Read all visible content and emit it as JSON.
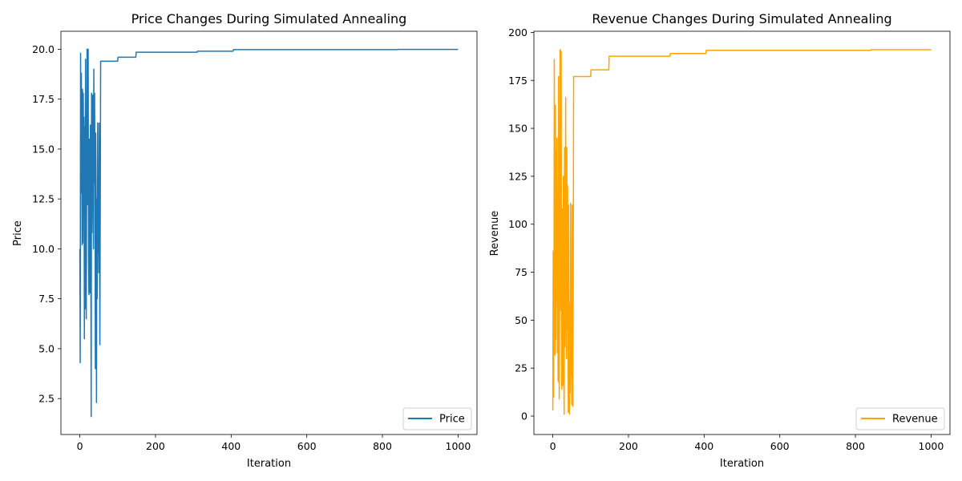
{
  "chart_data": [
    {
      "type": "line",
      "title": "Price Changes During Simulated Annealing",
      "xlabel": "Iteration",
      "ylabel": "Price",
      "xlim": [
        -50,
        1050
      ],
      "ylim": [
        0.7,
        20.9
      ],
      "xticks": [
        0,
        200,
        400,
        600,
        800,
        1000
      ],
      "yticks": [
        2.5,
        5.0,
        7.5,
        10.0,
        12.5,
        15.0,
        17.5,
        20.0
      ],
      "xtick_labels": [
        "0",
        "200",
        "400",
        "600",
        "800",
        "1000"
      ],
      "ytick_labels": [
        "2.5",
        "5.0",
        "7.5",
        "10.0",
        "12.5",
        "15.0",
        "17.5",
        "20.0"
      ],
      "grid": false,
      "legend_position": "bottom-right",
      "series": [
        {
          "name": "Price",
          "color": "#1f77b4",
          "x": [
            0,
            1,
            2,
            3,
            4,
            5,
            6,
            7,
            8,
            9,
            10,
            11,
            12,
            13,
            14,
            15,
            16,
            17,
            18,
            19,
            20,
            21,
            22,
            23,
            24,
            25,
            26,
            27,
            28,
            29,
            30,
            31,
            32,
            33,
            34,
            35,
            36,
            37,
            38,
            39,
            40,
            41,
            42,
            43,
            44,
            45,
            46,
            47,
            48,
            49,
            50,
            51,
            52,
            53,
            54,
            55,
            56,
            57,
            58,
            59,
            60,
            61,
            62,
            63,
            64,
            100,
            101,
            148,
            149,
            310,
            311,
            405,
            406,
            840,
            841,
            1000
          ],
          "y": [
            10.0,
            4.3,
            19.8,
            12.8,
            18.8,
            15.2,
            10.2,
            18.0,
            10.3,
            17.8,
            14.5,
            16.6,
            5.5,
            16.1,
            7.0,
            19.5,
            10.6,
            6.5,
            13.5,
            20.0,
            20.0,
            12.2,
            20.0,
            9.5,
            7.7,
            15.5,
            10.0,
            7.8,
            16.2,
            10.6,
            1.6,
            17.8,
            10.8,
            14.5,
            17.7,
            13.6,
            10.0,
            19.0,
            13.3,
            17.8,
            13.4,
            4.0,
            15.8,
            12.0,
            2.3,
            12.5,
            7.5,
            16.3,
            9.8,
            12.6,
            8.8,
            16.3,
            11.0,
            5.2,
            12.3,
            19.4,
            19.4,
            19.4,
            19.4,
            19.4,
            19.4,
            19.4,
            19.4,
            19.4,
            19.4,
            19.4,
            19.6,
            19.6,
            19.85,
            19.85,
            19.9,
            19.9,
            19.98,
            19.98,
            19.99,
            19.99
          ]
        }
      ]
    },
    {
      "type": "line",
      "title": "Revenue Changes During Simulated Annealing",
      "xlabel": "Iteration",
      "ylabel": "Revenue",
      "xlim": [
        -50,
        1050
      ],
      "ylim": [
        -9.6,
        200.6
      ],
      "xticks": [
        0,
        200,
        400,
        600,
        800,
        1000
      ],
      "yticks": [
        0,
        25,
        50,
        75,
        100,
        125,
        150,
        175,
        200
      ],
      "xtick_labels": [
        "0",
        "200",
        "400",
        "600",
        "800",
        "1000"
      ],
      "ytick_labels": [
        "0",
        "25",
        "50",
        "75",
        "100",
        "125",
        "150",
        "175",
        "200"
      ],
      "grid": false,
      "legend_position": "bottom-right",
      "series": [
        {
          "name": "Revenue",
          "color": "#ffa500",
          "x": [
            0,
            1,
            2,
            3,
            4,
            5,
            6,
            7,
            8,
            9,
            10,
            11,
            12,
            13,
            14,
            15,
            16,
            17,
            18,
            19,
            20,
            21,
            22,
            23,
            24,
            25,
            26,
            27,
            28,
            29,
            30,
            31,
            32,
            33,
            34,
            35,
            36,
            37,
            38,
            39,
            40,
            41,
            42,
            43,
            44,
            45,
            46,
            47,
            48,
            49,
            50,
            51,
            52,
            53,
            54,
            55,
            56,
            57,
            58,
            59,
            60,
            61,
            62,
            63,
            64,
            100,
            101,
            148,
            149,
            310,
            311,
            405,
            406,
            840,
            841,
            1000
          ],
          "y": [
            3,
            86,
            10,
            58,
            186,
            90,
            32,
            162,
            40,
            138,
            60,
            145,
            33,
            116,
            18,
            177,
            58,
            9,
            80,
            191,
            191,
            55,
            190,
            20,
            14,
            108,
            22,
            16,
            125,
            30,
            1,
            140,
            36,
            70,
            166,
            62,
            30,
            140,
            45,
            120,
            38,
            2,
            110,
            28,
            1,
            58,
            12,
            111,
            21,
            60,
            6,
            110,
            25,
            5,
            70,
            177,
            177,
            177,
            177,
            177,
            177,
            177,
            177,
            177,
            177,
            177,
            180.5,
            180.5,
            187.6,
            187.6,
            189,
            189,
            190.7,
            190.7,
            191,
            191
          ]
        }
      ]
    }
  ]
}
